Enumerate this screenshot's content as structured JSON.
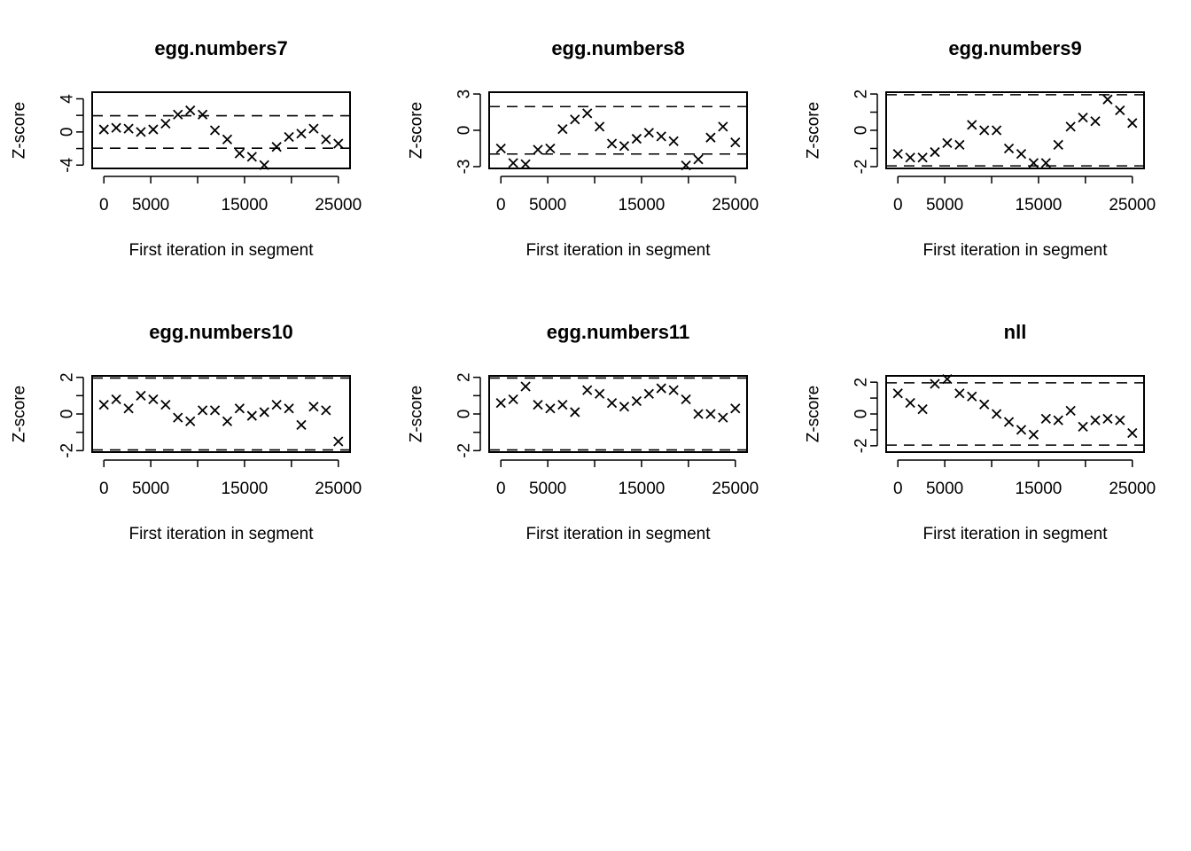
{
  "chart_data": [
    {
      "type": "scatter",
      "title": "egg.numbers7",
      "xlabel": "First iteration in segment",
      "ylabel": "Z-score",
      "xlim": [
        -1250,
        26250
      ],
      "ylim": [
        -4.4,
        4.8
      ],
      "xticks": [
        0,
        5000,
        15000,
        25000
      ],
      "yticks": [
        -4,
        0,
        4
      ],
      "yminor": [
        -2,
        2
      ],
      "hlines": [
        -1.96,
        1.96
      ],
      "x": [
        0,
        1316,
        2632,
        3947,
        5263,
        6579,
        7895,
        9211,
        10526,
        11842,
        13158,
        14474,
        15789,
        17105,
        18421,
        19737,
        21053,
        22368,
        23684,
        25000
      ],
      "y": [
        0.3,
        0.5,
        0.4,
        0.0,
        0.3,
        1.0,
        2.1,
        2.6,
        2.1,
        0.2,
        -0.9,
        -2.6,
        -3.0,
        -4.0,
        -1.8,
        -0.6,
        -0.2,
        0.4,
        -0.9,
        -1.4
      ]
    },
    {
      "type": "scatter",
      "title": "egg.numbers8",
      "xlabel": "First iteration in segment",
      "ylabel": "Z-score",
      "xlim": [
        -1250,
        26250
      ],
      "ylim": [
        -3.15,
        3.15
      ],
      "xticks": [
        0,
        5000,
        15000,
        25000
      ],
      "yticks": [
        -3,
        0,
        3
      ],
      "yminor": [],
      "hlines": [
        -1.96,
        1.96
      ],
      "x": [
        0,
        1316,
        2632,
        3947,
        5263,
        6579,
        7895,
        9211,
        10526,
        11842,
        13158,
        14474,
        15789,
        17105,
        18421,
        19737,
        21053,
        22368,
        23684,
        25000
      ],
      "y": [
        -1.5,
        -2.7,
        -2.8,
        -1.6,
        -1.5,
        0.1,
        0.9,
        1.4,
        0.3,
        -1.1,
        -1.3,
        -0.7,
        -0.2,
        -0.5,
        -0.9,
        -2.9,
        -2.4,
        -0.6,
        0.3,
        -1.0
      ]
    },
    {
      "type": "scatter",
      "title": "egg.numbers9",
      "xlabel": "First iteration in segment",
      "ylabel": "Z-score",
      "xlim": [
        -1250,
        26250
      ],
      "ylim": [
        -2.1,
        2.1
      ],
      "xticks": [
        0,
        5000,
        15000,
        25000
      ],
      "yticks": [
        -2,
        0,
        2
      ],
      "yminor": [
        -1,
        1
      ],
      "hlines": [
        -1.96,
        1.96
      ],
      "x": [
        0,
        1316,
        2632,
        3947,
        5263,
        6579,
        7895,
        9211,
        10526,
        11842,
        13158,
        14474,
        15789,
        17105,
        18421,
        19737,
        21053,
        22368,
        23684,
        25000
      ],
      "y": [
        -1.3,
        -1.5,
        -1.5,
        -1.2,
        -0.7,
        -0.8,
        0.3,
        0.0,
        0.0,
        -1.0,
        -1.3,
        -1.8,
        -1.8,
        -0.8,
        0.2,
        0.7,
        0.5,
        1.7,
        1.1,
        0.4
      ]
    },
    {
      "type": "scatter",
      "title": "egg.numbers10",
      "xlabel": "First iteration in segment",
      "ylabel": "Z-score",
      "xlim": [
        -1250,
        26250
      ],
      "ylim": [
        -2.08,
        2.08
      ],
      "xticks": [
        0,
        5000,
        15000,
        25000
      ],
      "yticks": [
        -2,
        0,
        2
      ],
      "yminor": [
        -1,
        1
      ],
      "hlines": [
        -1.96,
        1.96
      ],
      "x": [
        0,
        1316,
        2632,
        3947,
        5263,
        6579,
        7895,
        9211,
        10526,
        11842,
        13158,
        14474,
        15789,
        17105,
        18421,
        19737,
        21053,
        22368,
        23684,
        25000
      ],
      "y": [
        0.5,
        0.8,
        0.3,
        1.0,
        0.8,
        0.5,
        -0.2,
        -0.4,
        0.2,
        0.2,
        -0.4,
        0.3,
        -0.1,
        0.1,
        0.5,
        0.3,
        -0.6,
        0.4,
        0.2,
        -1.5
      ]
    },
    {
      "type": "scatter",
      "title": "egg.numbers11",
      "xlabel": "First iteration in segment",
      "ylabel": "Z-score",
      "xlim": [
        -1250,
        26250
      ],
      "ylim": [
        -2.08,
        2.08
      ],
      "xticks": [
        0,
        5000,
        15000,
        25000
      ],
      "yticks": [
        -2,
        0,
        2
      ],
      "yminor": [
        -1,
        1
      ],
      "hlines": [
        -1.96,
        1.96
      ],
      "x": [
        0,
        1316,
        2632,
        3947,
        5263,
        6579,
        7895,
        9211,
        10526,
        11842,
        13158,
        14474,
        15789,
        17105,
        18421,
        19737,
        21053,
        22368,
        23684,
        25000
      ],
      "y": [
        0.6,
        0.8,
        1.5,
        0.5,
        0.3,
        0.5,
        0.1,
        1.3,
        1.1,
        0.6,
        0.4,
        0.7,
        1.1,
        1.4,
        1.3,
        0.8,
        0.0,
        0.0,
        -0.2,
        0.3
      ]
    },
    {
      "type": "scatter",
      "title": "nll",
      "xlabel": "First iteration in segment",
      "ylabel": "Z-score",
      "xlim": [
        -1250,
        26250
      ],
      "ylim": [
        -2.4,
        2.4
      ],
      "xticks": [
        0,
        5000,
        15000,
        25000
      ],
      "yticks": [
        -2,
        0,
        2
      ],
      "yminor": [
        -1,
        1
      ],
      "hlines": [
        -1.96,
        1.96
      ],
      "x": [
        0,
        1316,
        2632,
        3947,
        5263,
        6579,
        7895,
        9211,
        10526,
        11842,
        13158,
        14474,
        15789,
        17105,
        18421,
        19737,
        21053,
        22368,
        23684,
        25000
      ],
      "y": [
        1.3,
        0.7,
        0.3,
        1.9,
        2.2,
        1.3,
        1.1,
        0.6,
        0.0,
        -0.5,
        -1.0,
        -1.3,
        -0.3,
        -0.4,
        0.2,
        -0.8,
        -0.4,
        -0.3,
        -0.4,
        -1.2
      ]
    }
  ]
}
